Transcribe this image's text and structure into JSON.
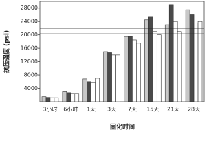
{
  "chart_data": {
    "type": "bar",
    "y_label": "抗压强度 (psi)",
    "x_label": "固化时间",
    "categories": [
      "3小时",
      "6小时",
      "1天",
      "3天",
      "7天",
      "15天",
      "21天",
      "28天"
    ],
    "series": [
      {
        "color": "#c8c8c8",
        "values": [
          1500,
          3000,
          6800,
          15000,
          19500,
          24500,
          23000,
          27500
        ]
      },
      {
        "color": "#4a4a4a",
        "values": [
          1300,
          2700,
          6000,
          14700,
          19500,
          25500,
          29000,
          26000
        ]
      },
      {
        "color": "#ffffff",
        "values": [
          1200,
          2500,
          5800,
          14000,
          18500,
          21000,
          24000,
          23500
        ]
      },
      {
        "color": "#ffffff",
        "values": [
          1200,
          2500,
          7000,
          14000,
          17500,
          20000,
          21000,
          24000
        ]
      }
    ],
    "reference_lines": [
      20300,
      22000
    ],
    "ylim": [
      0,
      30000
    ],
    "yticks": [
      4000,
      8000,
      12000,
      16000,
      20000,
      24000,
      28000
    ]
  }
}
